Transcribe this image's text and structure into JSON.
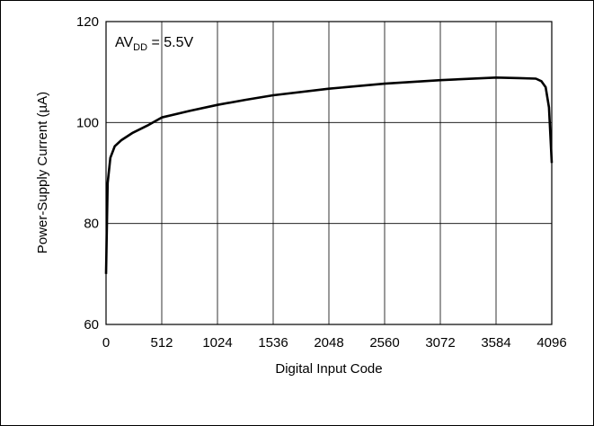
{
  "chart_data": {
    "type": "line",
    "xlabel": "Digital Input Code",
    "ylabel": "Power-Supply Current (µA)",
    "xlim": [
      0,
      4096
    ],
    "ylim": [
      60,
      120
    ],
    "x_ticks": [
      0,
      512,
      1024,
      1536,
      2048,
      2560,
      3072,
      3584,
      4096
    ],
    "y_ticks": [
      60,
      80,
      100,
      120
    ],
    "grid": true,
    "annotation": {
      "text_prefix": "AV",
      "text_subscript": "DD",
      "text_suffix": " = 5.5V"
    },
    "series": [
      {
        "x": [
          0,
          15,
          40,
          80,
          140,
          240,
          380,
          512,
          768,
          1024,
          1280,
          1536,
          2048,
          2560,
          3072,
          3584,
          3800,
          3950,
          4000,
          4040,
          4070,
          4096
        ],
        "y": [
          70,
          88,
          93,
          95.3,
          96.5,
          97.9,
          99.4,
          101,
          102.3,
          103.5,
          104.5,
          105.4,
          106.7,
          107.7,
          108.4,
          108.9,
          108.8,
          108.7,
          108.2,
          107,
          103,
          92
        ]
      }
    ]
  }
}
